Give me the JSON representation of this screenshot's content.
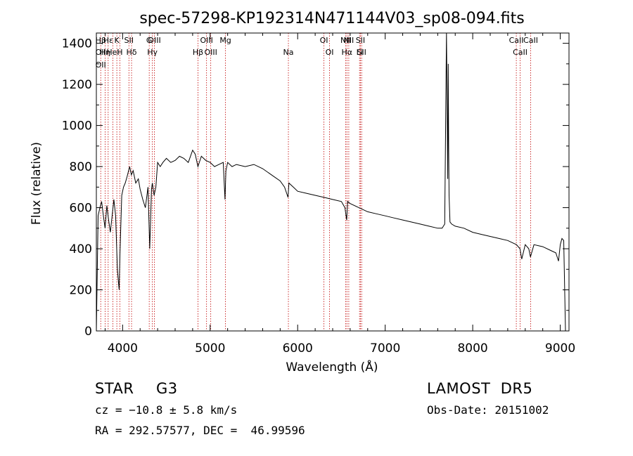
{
  "chart_data": {
    "type": "line",
    "title": "spec-57298-KP192314N471144V03_sp08-094.fits",
    "xlabel": "Wavelength (Å)",
    "ylabel": "Flux (relative)",
    "xlim": [
      3700,
      9100
    ],
    "ylim": [
      0,
      1450
    ],
    "xticks": [
      4000,
      5000,
      6000,
      7000,
      8000,
      9000
    ],
    "yticks": [
      0,
      200,
      400,
      600,
      800,
      1000,
      1200,
      1400
    ],
    "grid": false,
    "series": [
      {
        "x": [
          3700,
          3720,
          3740,
          3760,
          3780,
          3800,
          3820,
          3840,
          3860,
          3880,
          3900,
          3920,
          3940,
          3960,
          3970,
          3990,
          4010,
          4030,
          4050,
          4080,
          4100,
          4120,
          4150,
          4180,
          4200,
          4230,
          4260,
          4290,
          4310,
          4330,
          4340,
          4360,
          4380,
          4400,
          4430,
          4460,
          4500,
          4550,
          4600,
          4650,
          4700,
          4750,
          4800,
          4830,
          4860,
          4900,
          4950,
          5000,
          5050,
          5100,
          5150,
          5170,
          5180,
          5200,
          5250,
          5300,
          5400,
          5500,
          5600,
          5700,
          5800,
          5850,
          5890,
          5900,
          5950,
          6000,
          6100,
          6200,
          6300,
          6400,
          6500,
          6540,
          6560,
          6570,
          6600,
          6700,
          6800,
          6900,
          7000,
          7100,
          7200,
          7300,
          7400,
          7500,
          7600,
          7650,
          7680,
          7700,
          7710,
          7715,
          7720,
          7725,
          7730,
          7735,
          7740,
          7760,
          7800,
          7900,
          8000,
          8100,
          8200,
          8300,
          8400,
          8500,
          8540,
          8560,
          8600,
          8640,
          8660,
          8700,
          8800,
          8900,
          8950,
          8980,
          9000,
          9020,
          9040,
          9060
        ],
        "y": [
          0,
          560,
          600,
          630,
          560,
          500,
          610,
          540,
          480,
          560,
          640,
          560,
          300,
          200,
          380,
          660,
          700,
          720,
          750,
          800,
          760,
          780,
          720,
          740,
          690,
          640,
          600,
          700,
          400,
          690,
          720,
          660,
          700,
          820,
          800,
          820,
          840,
          820,
          830,
          850,
          840,
          820,
          880,
          860,
          800,
          850,
          830,
          820,
          800,
          810,
          820,
          640,
          780,
          820,
          800,
          810,
          800,
          810,
          790,
          760,
          730,
          700,
          650,
          720,
          700,
          680,
          670,
          660,
          650,
          640,
          630,
          600,
          540,
          630,
          620,
          600,
          580,
          570,
          560,
          550,
          540,
          530,
          520,
          510,
          500,
          500,
          520,
          1450,
          1000,
          740,
          1300,
          900,
          660,
          600,
          530,
          520,
          510,
          500,
          480,
          470,
          460,
          450,
          440,
          420,
          400,
          350,
          420,
          400,
          360,
          420,
          410,
          390,
          380,
          340,
          420,
          450,
          440,
          0
        ]
      }
    ],
    "lines": [
      {
        "x": 3750,
        "labels": [
          "Hβ",
          "OII",
          "OII"
        ]
      },
      {
        "x": 3800,
        "labels": [
          "Hη"
        ]
      },
      {
        "x": 3835,
        "labels": [
          "Hε"
        ]
      },
      {
        "x": 3889,
        "labels": [
          "HeI"
        ]
      },
      {
        "x": 3934,
        "labels": [
          "K"
        ]
      },
      {
        "x": 3968,
        "labels": [
          "H"
        ]
      },
      {
        "x": 4072,
        "labels": [
          "SII"
        ]
      },
      {
        "x": 4102,
        "labels": [
          "Hδ"
        ]
      },
      {
        "x": 4304,
        "labels": [
          "G"
        ]
      },
      {
        "x": 4340,
        "labels": [
          "Hγ"
        ]
      },
      {
        "x": 4363,
        "labels": [
          "OIII"
        ]
      },
      {
        "x": 4861,
        "labels": [
          "Hβ"
        ]
      },
      {
        "x": 4959,
        "labels": [
          "OIII"
        ]
      },
      {
        "x": 5007,
        "labels": [
          "OIII"
        ]
      },
      {
        "x": 5175,
        "labels": [
          "Mg"
        ]
      },
      {
        "x": 5894,
        "labels": [
          "Na"
        ]
      },
      {
        "x": 6300,
        "labels": [
          "OI"
        ]
      },
      {
        "x": 6364,
        "labels": [
          "OI"
        ]
      },
      {
        "x": 6548,
        "labels": [
          "NII"
        ]
      },
      {
        "x": 6563,
        "labels": [
          "Hα"
        ]
      },
      {
        "x": 6584,
        "labels": [
          "NII"
        ]
      },
      {
        "x": 6707,
        "labels": [
          "Li"
        ]
      },
      {
        "x": 6717,
        "labels": [
          "SII"
        ]
      },
      {
        "x": 6731,
        "labels": [
          "SII"
        ]
      },
      {
        "x": 8498,
        "labels": [
          "CaII"
        ]
      },
      {
        "x": 8542,
        "labels": [
          "CaII"
        ]
      },
      {
        "x": 8662,
        "labels": [
          "CaII"
        ]
      }
    ],
    "line_label_strings": [
      "Hβ",
      "OII",
      "Hη",
      "Hε",
      "HeI",
      "K",
      "H",
      "SII",
      "Hδ",
      "G",
      "Hγ",
      "OIII",
      "Mg",
      "Na",
      "OI",
      "NII",
      "Hα",
      "Li",
      "CaII"
    ]
  },
  "info": {
    "object_class": "STAR",
    "subclass": "G3",
    "survey": "LAMOST  DR5",
    "cz": "cz = −10.8 ± 5.8 km/s",
    "obs_date": "Obs-Date: 20151002",
    "coords": "RA = 292.57577, DEC =  46.99596"
  },
  "colors": {
    "spectrum": "#000000",
    "line_marker": "#c00000",
    "axes": "#000000"
  }
}
